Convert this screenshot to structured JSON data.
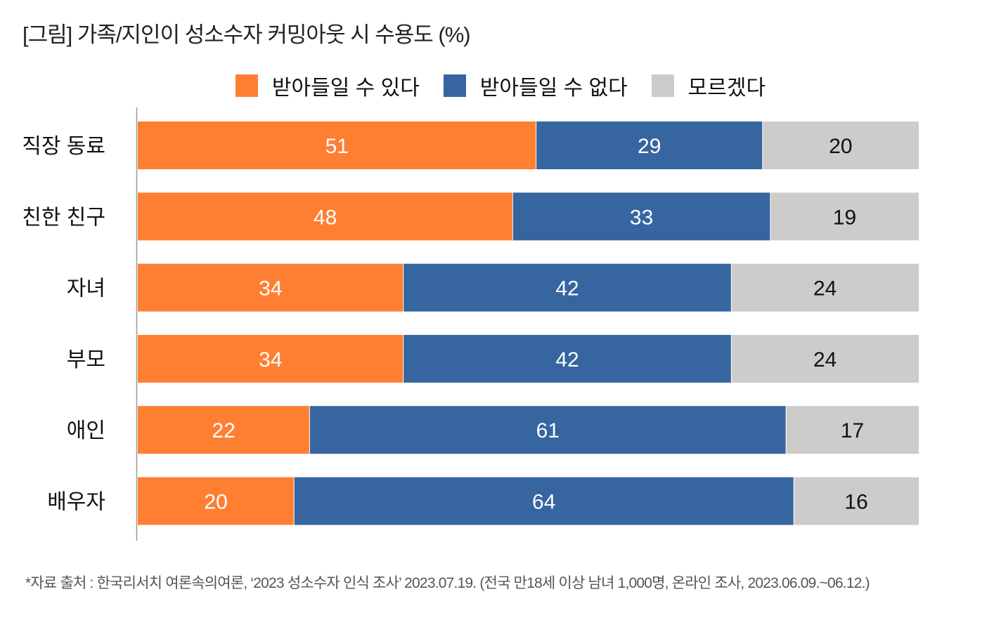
{
  "title": "[그림] 가족/지인이 성소수자 커밍아웃 시 수용도 (%)",
  "footnote": "*자료 출처 : 한국리서치 여론속의여론, ‘2023 성소수자 인식 조사’ 2023.07.19. (전국 만18세 이상 남녀 1,000명, 온라인 조사, 2023.06.09.~06.12.)",
  "chart_data": {
    "type": "bar",
    "orientation": "horizontal",
    "stacked": true,
    "title": "[그림] 가족/지인이 성소수자 커밍아웃 시 수용도 (%)",
    "categories": [
      "직장 동료",
      "친한 친구",
      "자녀",
      "부모",
      "애인",
      "배우자"
    ],
    "series": [
      {
        "name": "받아들일 수 있다",
        "color": "#FF7F32",
        "values": [
          51,
          48,
          34,
          34,
          22,
          20
        ]
      },
      {
        "name": "받아들일 수 없다",
        "color": "#3765A0",
        "values": [
          29,
          33,
          42,
          42,
          61,
          64
        ]
      },
      {
        "name": "모르겠다",
        "color": "#CCCCCB",
        "values": [
          20,
          19,
          24,
          24,
          17,
          16
        ]
      }
    ],
    "xlim": [
      0,
      100
    ],
    "legend": "top-center",
    "grid": false
  }
}
